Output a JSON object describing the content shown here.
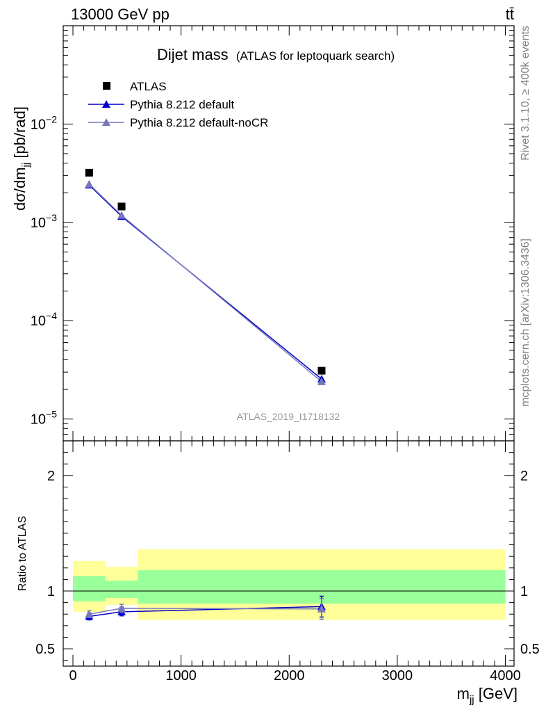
{
  "header": {
    "energy_label": "13000 GeV pp",
    "process_label": "tt̄"
  },
  "side_labels": {
    "rivet": "Rivet 3.1.10, ≥ 400k events",
    "mcplots": "mcplots.cern.ch [arXiv:1306.3436]"
  },
  "chart_data": [
    {
      "type": "scatter",
      "title": "Dijet mass",
      "subtitle": "(ATLAS for leptoquark search)",
      "analysis_id": "ATLAS_2019_I1718132",
      "ylabel": "dσ/dm",
      "ylabel_sub": "jj",
      "ylabel_unit": " [pb/rad]",
      "yscale": "log",
      "ylim": [
        6e-06,
        0.1
      ],
      "xlim": [
        -90,
        4080
      ],
      "ytick_labels": [
        {
          "value": 0.01,
          "base": "10",
          "exp": "−2"
        },
        {
          "value": 0.001,
          "base": "10",
          "exp": "−3"
        },
        {
          "value": 0.0001,
          "base": "10",
          "exp": "−4"
        },
        {
          "value": 1e-05,
          "base": "10",
          "exp": "−5"
        }
      ],
      "legend_position": "top-left",
      "series": [
        {
          "name": "ATLAS",
          "marker": "square",
          "color": "#000000",
          "x": [
            150,
            450,
            2300
          ],
          "y": [
            0.0032,
            0.00145,
            3.1e-05
          ]
        },
        {
          "name": "Pythia 8.212 default",
          "marker": "triangle",
          "color": "#0000cc",
          "x": [
            150,
            450,
            2300
          ],
          "y": [
            0.0024,
            0.00115,
            2.55e-05
          ]
        },
        {
          "name": "Pythia 8.212 default-noCR",
          "marker": "triangle",
          "color": "#7777bb",
          "x": [
            150,
            450,
            2300
          ],
          "y": [
            0.00245,
            0.00118,
            2.4e-05
          ]
        }
      ]
    },
    {
      "type": "scatter",
      "ylabel": "Ratio to ATLAS",
      "xlabel": "m",
      "xlabel_sub": "jj",
      "xlabel_unit": " [GeV]",
      "xlim": [
        -90,
        4080
      ],
      "ylim": [
        0.35,
        2.3
      ],
      "xticks": [
        0,
        1000,
        2000,
        3000,
        4000
      ],
      "xtick_labels": [
        "0",
        "1000",
        "2000",
        "3000",
        "4000"
      ],
      "yticks": [
        0.5,
        1,
        2
      ],
      "ytick_labels": [
        "0.5",
        "1",
        "2"
      ],
      "reference_line": 1,
      "uncertainty_bands": [
        {
          "x_range": [
            0,
            300
          ],
          "inner": [
            0.91,
            1.13
          ],
          "outer": [
            0.82,
            1.26
          ]
        },
        {
          "x_range": [
            300,
            600
          ],
          "inner": [
            0.94,
            1.09
          ],
          "outer": [
            0.88,
            1.21
          ]
        },
        {
          "x_range": [
            600,
            4000
          ],
          "inner": [
            0.89,
            1.18
          ],
          "outer": [
            0.75,
            1.36
          ]
        }
      ],
      "band_colors": {
        "inner": "#99ff99",
        "outer": "#ffff99"
      },
      "series": [
        {
          "name": "Pythia 8.212 default",
          "color": "#0000cc",
          "x": [
            150,
            450,
            2300
          ],
          "y": [
            0.78,
            0.82,
            0.865
          ],
          "err_low": [
            0.03,
            0.035,
            0.09
          ],
          "err_high": [
            0.03,
            0.04,
            0.09
          ]
        },
        {
          "name": "Pythia 8.212 default-noCR",
          "color": "#7777bb",
          "x": [
            150,
            450,
            2300
          ],
          "y": [
            0.8,
            0.85,
            0.845
          ],
          "err_low": [
            0.03,
            0.035,
            0.09
          ],
          "err_high": [
            0.03,
            0.035,
            0.09
          ]
        }
      ]
    }
  ]
}
